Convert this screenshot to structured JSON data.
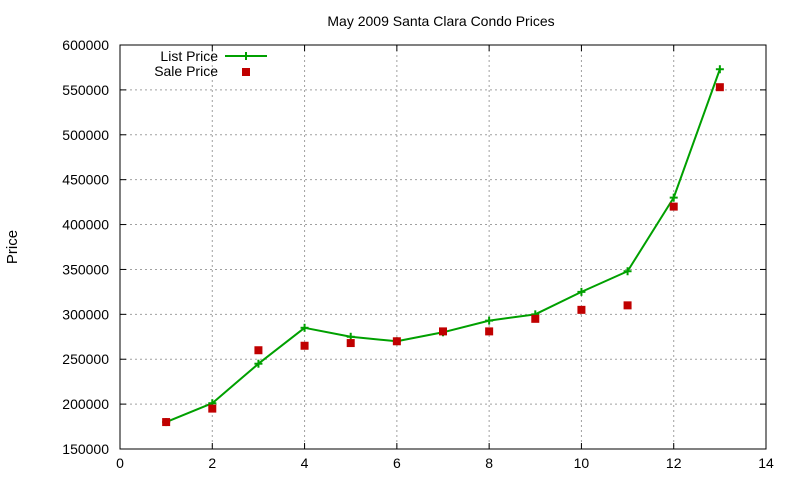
{
  "chart_data": {
    "type": "line",
    "title": "May 2009 Santa Clara Condo Prices",
    "xlabel": "",
    "ylabel": "Price",
    "xlim": [
      0,
      14
    ],
    "ylim": [
      150000,
      600000
    ],
    "x_ticks": [
      0,
      2,
      4,
      6,
      8,
      10,
      12,
      14
    ],
    "y_ticks": [
      150000,
      200000,
      250000,
      300000,
      350000,
      400000,
      450000,
      500000,
      550000,
      600000
    ],
    "grid": true,
    "legend_position": "top-left",
    "series": [
      {
        "name": "List Price",
        "style": "linespoints",
        "marker": "plus",
        "color": "#00a000",
        "x": [
          1,
          2,
          3,
          4,
          5,
          6,
          7,
          8,
          9,
          10,
          11,
          12,
          13
        ],
        "y": [
          180000,
          201000,
          245000,
          285000,
          275000,
          270000,
          280000,
          293000,
          300000,
          325000,
          348000,
          430000,
          573000
        ]
      },
      {
        "name": "Sale Price",
        "style": "points",
        "marker": "square",
        "color": "#c00000",
        "x": [
          1,
          2,
          3,
          4,
          5,
          6,
          7,
          8,
          9,
          10,
          11,
          12,
          13
        ],
        "y": [
          180000,
          195000,
          260000,
          265000,
          268000,
          270000,
          281000,
          281000,
          295000,
          305000,
          310000,
          420000,
          553000
        ]
      }
    ]
  }
}
